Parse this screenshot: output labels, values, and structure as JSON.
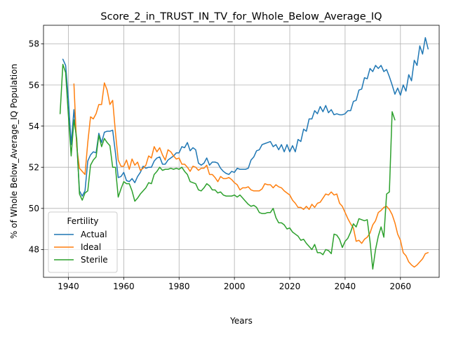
{
  "chart_data": {
    "type": "line",
    "title": "Score_2_in_TRUST_IN_TV_for_Whole_Below_Average_IQ",
    "xlabel": "Years",
    "ylabel": "% of Whole Below_Average_IQ Population",
    "xlim": [
      1931,
      2074
    ],
    "ylim": [
      46.65,
      58.9
    ],
    "xticks": [
      1940,
      1960,
      1980,
      2000,
      2020,
      2040,
      2060
    ],
    "yticks": [
      48,
      50,
      52,
      54,
      56,
      58
    ],
    "grid": true,
    "legend": {
      "title": "Fertility",
      "position": "lower-left"
    },
    "series": [
      {
        "name": "Actual",
        "color": "#1f77b4",
        "x": [
          1938,
          1939,
          1940,
          1941,
          1942,
          1943,
          1944,
          1945,
          1946,
          1947,
          1948,
          1949,
          1950,
          1951,
          1952,
          1953,
          1954,
          1955,
          1956,
          1957,
          1958,
          1959,
          1960,
          1961,
          1962,
          1963,
          1964,
          1965,
          1966,
          1967,
          1968,
          1969,
          1970,
          1971,
          1972,
          1973,
          1974,
          1975,
          1976,
          1977,
          1978,
          1979,
          1980,
          1981,
          1982,
          1983,
          1984,
          1985,
          1986,
          1987,
          1988,
          1989,
          1990,
          1991,
          1992,
          1993,
          1994,
          1995,
          1996,
          1997,
          1998,
          1999,
          2000,
          2001,
          2002,
          2003,
          2004,
          2005,
          2006,
          2007,
          2008,
          2009,
          2010,
          2011,
          2012,
          2013,
          2014,
          2015,
          2016,
          2017,
          2018,
          2019,
          2020,
          2021,
          2022,
          2023,
          2024,
          2025,
          2026,
          2027,
          2028,
          2029,
          2030,
          2031,
          2032,
          2033,
          2034,
          2035,
          2036,
          2037,
          2038,
          2039,
          2040,
          2041,
          2042,
          2043,
          2044,
          2045,
          2046,
          2047,
          2048,
          2049,
          2050,
          2051,
          2052,
          2053,
          2054,
          2055,
          2056,
          2057,
          2058,
          2059,
          2060,
          2061,
          2062,
          2063,
          2064,
          2065,
          2066,
          2067,
          2068,
          2069,
          2070
        ],
        "y": [
          57.25,
          56.95,
          55.3,
          53.1,
          54.8,
          53.2,
          50.85,
          50.6,
          50.85,
          52.3,
          52.6,
          52.75,
          52.7,
          53.65,
          53.2,
          53.7,
          53.75,
          53.75,
          53.8,
          52.7,
          51.5,
          51.55,
          51.75,
          51.35,
          51.3,
          51.45,
          51.25,
          51.55,
          51.75,
          52.05,
          51.95,
          52.0,
          52.0,
          52.3,
          52.45,
          52.5,
          52.15,
          52.15,
          52.35,
          52.45,
          52.55,
          52.7,
          52.7,
          53.0,
          52.95,
          53.2,
          52.8,
          52.95,
          52.85,
          52.2,
          52.1,
          52.2,
          52.45,
          52.1,
          52.25,
          52.25,
          52.2,
          51.95,
          51.8,
          51.7,
          51.65,
          51.8,
          51.75,
          51.95,
          51.9,
          51.9,
          51.9,
          51.95,
          52.35,
          52.5,
          52.8,
          52.85,
          53.1,
          53.15,
          53.2,
          53.25,
          53.0,
          53.1,
          52.85,
          53.1,
          52.75,
          53.1,
          52.75,
          53.05,
          52.75,
          53.35,
          53.25,
          53.85,
          53.75,
          54.35,
          54.35,
          54.75,
          54.6,
          54.95,
          54.7,
          55.0,
          54.65,
          54.8,
          54.55,
          54.6,
          54.55,
          54.55,
          54.6,
          54.75,
          54.75,
          55.2,
          55.25,
          55.75,
          55.8,
          56.35,
          56.3,
          56.8,
          56.65,
          56.95,
          56.8,
          56.95,
          56.65,
          56.75,
          56.4,
          56.0,
          55.55,
          55.85,
          55.5,
          56.0,
          55.7,
          56.5,
          56.2,
          57.2,
          56.95,
          57.9,
          57.5,
          58.3,
          57.75
        ]
      },
      {
        "name": "Ideal",
        "color": "#ff7f0e",
        "x": [
          1942,
          1943,
          1944,
          1945,
          1946,
          1947,
          1948,
          1949,
          1950,
          1951,
          1952,
          1953,
          1954,
          1955,
          1956,
          1957,
          1958,
          1959,
          1960,
          1961,
          1962,
          1963,
          1964,
          1965,
          1966,
          1967,
          1968,
          1969,
          1970,
          1971,
          1972,
          1973,
          1974,
          1975,
          1976,
          1977,
          1978,
          1979,
          1980,
          1981,
          1982,
          1983,
          1984,
          1985,
          1986,
          1987,
          1988,
          1989,
          1990,
          1991,
          1992,
          1993,
          1994,
          1995,
          1996,
          1997,
          1998,
          1999,
          2000,
          2001,
          2002,
          2003,
          2004,
          2005,
          2006,
          2007,
          2008,
          2009,
          2010,
          2011,
          2012,
          2013,
          2014,
          2015,
          2016,
          2017,
          2018,
          2019,
          2020,
          2021,
          2022,
          2023,
          2024,
          2025,
          2026,
          2027,
          2028,
          2029,
          2030,
          2031,
          2032,
          2033,
          2034,
          2035,
          2036,
          2037,
          2038,
          2039,
          2040,
          2041,
          2042,
          2043,
          2044,
          2045,
          2046,
          2047,
          2048,
          2049,
          2050,
          2051,
          2052,
          2053,
          2054,
          2055,
          2056,
          2057,
          2058,
          2059,
          2060,
          2061,
          2062,
          2063,
          2064,
          2065,
          2066,
          2067,
          2068,
          2069,
          2070
        ],
        "y": [
          56.05,
          53.0,
          51.95,
          51.8,
          51.65,
          53.2,
          54.45,
          54.35,
          54.6,
          55.05,
          55.05,
          56.1,
          55.75,
          55.05,
          55.25,
          53.7,
          52.35,
          52.05,
          52.05,
          52.35,
          51.9,
          52.4,
          52.1,
          52.25,
          51.85,
          51.95,
          52.1,
          52.55,
          52.45,
          53.0,
          52.75,
          52.95,
          52.6,
          52.35,
          52.85,
          52.75,
          52.55,
          52.4,
          52.45,
          52.15,
          52.15,
          52.0,
          51.8,
          52.05,
          52.0,
          51.85,
          51.95,
          51.95,
          52.1,
          51.65,
          51.65,
          51.5,
          51.3,
          51.55,
          51.45,
          51.45,
          51.5,
          51.4,
          51.25,
          51.15,
          50.9,
          51.0,
          51.0,
          51.05,
          50.9,
          50.85,
          50.85,
          50.85,
          50.95,
          51.2,
          51.15,
          51.15,
          51.0,
          51.15,
          51.05,
          51.0,
          50.85,
          50.75,
          50.65,
          50.4,
          50.25,
          50.05,
          50.05,
          49.95,
          50.1,
          49.95,
          50.2,
          50.05,
          50.25,
          50.3,
          50.5,
          50.7,
          50.65,
          50.8,
          50.65,
          50.7,
          50.25,
          50.1,
          49.8,
          49.5,
          49.25,
          49.05,
          48.4,
          48.45,
          48.3,
          48.5,
          48.6,
          48.8,
          49.2,
          49.4,
          49.8,
          49.9,
          50.05,
          50.1,
          49.95,
          49.7,
          49.3,
          48.75,
          48.45,
          47.85,
          47.7,
          47.4,
          47.25,
          47.15,
          47.25,
          47.4,
          47.55,
          47.8,
          47.85
        ]
      },
      {
        "name": "Sterile",
        "color": "#2ca02c",
        "x": [
          1937,
          1938,
          1939,
          1940,
          1941,
          1942,
          1943,
          1944,
          1945,
          1946,
          1947,
          1948,
          1949,
          1950,
          1951,
          1952,
          1953,
          1954,
          1955,
          1956,
          1957,
          1958,
          1959,
          1960,
          1961,
          1962,
          1963,
          1964,
          1965,
          1966,
          1967,
          1968,
          1969,
          1970,
          1971,
          1972,
          1973,
          1974,
          1975,
          1976,
          1977,
          1978,
          1979,
          1980,
          1981,
          1982,
          1983,
          1984,
          1985,
          1986,
          1987,
          1988,
          1989,
          1990,
          1991,
          1992,
          1993,
          1994,
          1995,
          1996,
          1997,
          1998,
          1999,
          2000,
          2001,
          2002,
          2003,
          2004,
          2005,
          2006,
          2007,
          2008,
          2009,
          2010,
          2011,
          2012,
          2013,
          2014,
          2015,
          2016,
          2017,
          2018,
          2019,
          2020,
          2021,
          2022,
          2023,
          2024,
          2025,
          2026,
          2027,
          2028,
          2029,
          2030,
          2031,
          2032,
          2033,
          2034,
          2035,
          2036,
          2037,
          2038,
          2039,
          2040,
          2041,
          2042,
          2043,
          2044,
          2045,
          2046,
          2047,
          2048,
          2049,
          2050,
          2051,
          2052,
          2053,
          2054,
          2055,
          2056,
          2057,
          2058
        ],
        "y": [
          54.6,
          57.0,
          56.6,
          54.5,
          52.55,
          54.3,
          53.4,
          50.7,
          50.4,
          50.75,
          50.85,
          52.1,
          52.35,
          52.5,
          53.55,
          53.0,
          53.4,
          53.2,
          53.05,
          52.0,
          52.0,
          50.55,
          50.95,
          51.3,
          51.2,
          51.2,
          50.85,
          50.35,
          50.5,
          50.7,
          50.85,
          51.0,
          51.25,
          51.2,
          51.65,
          51.8,
          52.0,
          51.85,
          51.9,
          51.9,
          51.95,
          51.9,
          51.95,
          51.9,
          52.0,
          51.8,
          51.65,
          51.3,
          51.25,
          51.2,
          50.9,
          50.85,
          51.0,
          51.2,
          51.1,
          50.9,
          50.9,
          50.75,
          50.8,
          50.65,
          50.6,
          50.6,
          50.6,
          50.65,
          50.55,
          50.65,
          50.5,
          50.35,
          50.2,
          50.1,
          50.15,
          50.05,
          49.8,
          49.75,
          49.75,
          49.8,
          49.8,
          50.0,
          49.55,
          49.3,
          49.3,
          49.2,
          49.0,
          49.05,
          48.85,
          48.75,
          48.65,
          48.45,
          48.5,
          48.3,
          48.15,
          48.0,
          48.25,
          47.85,
          47.85,
          47.75,
          48.0,
          47.95,
          47.8,
          48.75,
          48.7,
          48.5,
          48.1,
          48.4,
          48.55,
          48.85,
          49.25,
          49.1,
          49.5,
          49.45,
          49.4,
          49.45,
          48.4,
          47.05,
          48.0,
          48.65,
          49.1,
          48.6,
          50.7,
          50.8,
          54.7,
          54.3
        ]
      }
    ]
  }
}
